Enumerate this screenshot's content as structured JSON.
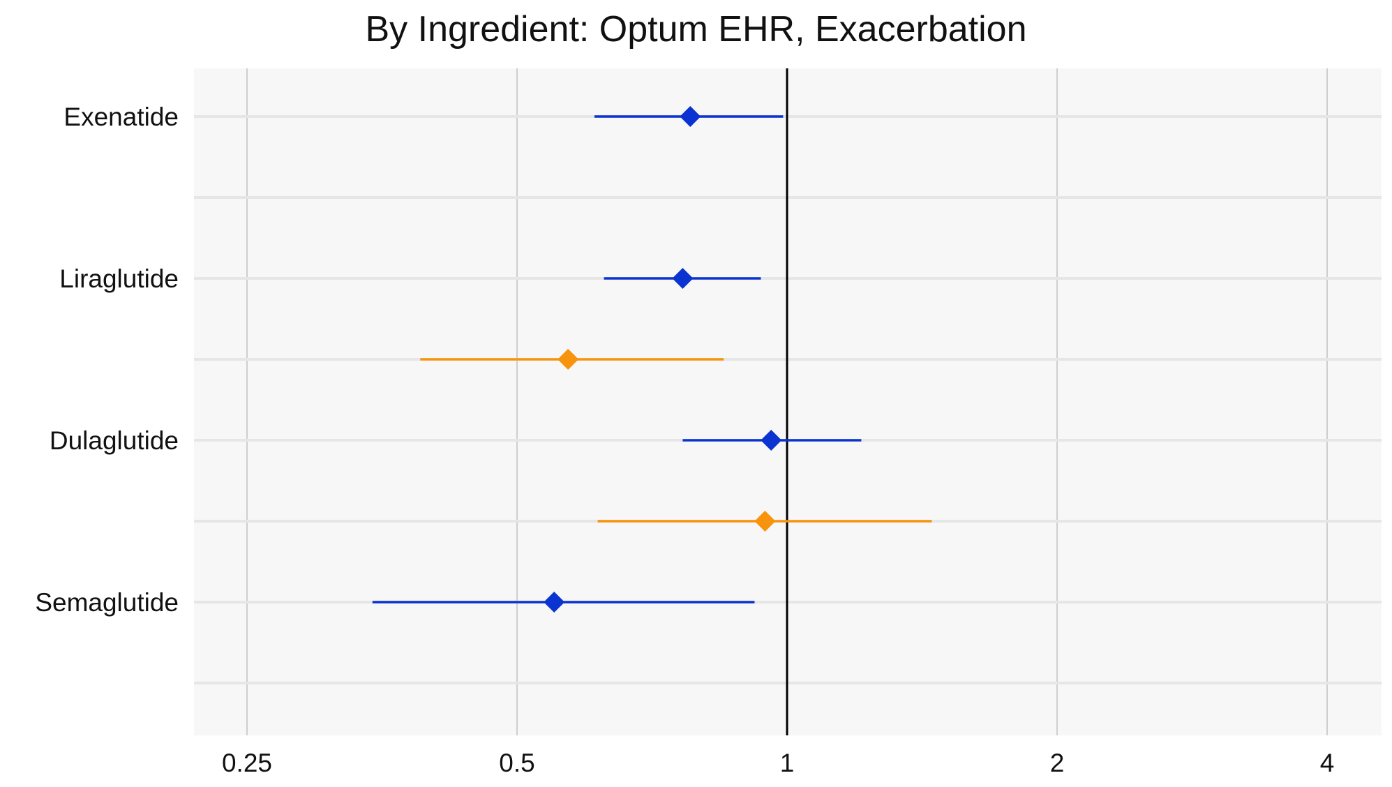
{
  "chart_data": {
    "type": "forest",
    "title": "By Ingredient: Optum EHR, Exacerbation",
    "x_scale": "log2",
    "xlim": [
      0.22,
      4.7
    ],
    "x_ticks": [
      0.25,
      0.5,
      1,
      2,
      4
    ],
    "x_tick_labels": [
      "0.25",
      "0.5",
      "1",
      "2",
      "4"
    ],
    "reference_line": 1,
    "grid": true,
    "colors": {
      "blue": "#0a33d1",
      "orange": "#f7930c",
      "panel": "#f7f7f7"
    },
    "categories": [
      "Exenatide",
      "Liraglutide",
      "Dulaglutide",
      "Semaglutide"
    ],
    "rows": 8,
    "estimates": [
      {
        "category": "Exenatide",
        "row": 1,
        "color": "blue",
        "point": 0.78,
        "lower": 0.61,
        "upper": 0.99
      },
      {
        "category": "Liraglutide",
        "row": 3,
        "color": "blue",
        "point": 0.765,
        "lower": 0.625,
        "upper": 0.935
      },
      {
        "category": "Liraglutide",
        "row": 4,
        "color": "orange",
        "point": 0.57,
        "lower": 0.39,
        "upper": 0.85
      },
      {
        "category": "Dulaglutide",
        "row": 5,
        "color": "blue",
        "point": 0.96,
        "lower": 0.765,
        "upper": 1.21
      },
      {
        "category": "Dulaglutide",
        "row": 6,
        "color": "orange",
        "point": 0.945,
        "lower": 0.615,
        "upper": 1.45
      },
      {
        "category": "Semaglutide",
        "row": 7,
        "color": "blue",
        "point": 0.55,
        "lower": 0.345,
        "upper": 0.92
      }
    ]
  }
}
